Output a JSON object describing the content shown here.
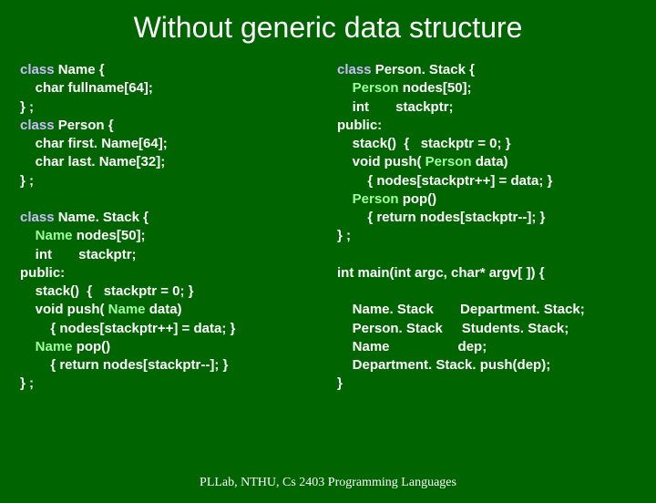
{
  "colors": {
    "background": "#006400",
    "title_color": "#ffffff",
    "text_color": "#ffffff",
    "keyword_color": "#ccbbff",
    "type_color": "#9fff9f",
    "footer_color": "#ffffff"
  },
  "title": "Without generic data structure",
  "title_font": "Comic Sans MS",
  "title_fontsize": 32,
  "code_fontsize": 15,
  "left": {
    "l1a": "class",
    "l1b": " Name {",
    "l2": "    char fullname[64];",
    "l3": "} ;",
    "l4a": "class",
    "l4b": " Person {",
    "l5": "    char first. Name[64];",
    "l6": "    char last. Name[32];",
    "l7": "} ;",
    "l8": "",
    "l9a": "class",
    "l9b": " Name. Stack {",
    "l10a": "    ",
    "l10b": "Name",
    "l10c": " nodes[50];",
    "l11": "    int       stackptr;",
    "l12": "public:",
    "l13": "    stack()  {   stackptr = 0; }",
    "l14a": "    void push(",
    "l14b": " Name",
    "l14c": " data)",
    "l15": "        { nodes[stackptr++] = data; }",
    "l16a": "    ",
    "l16b": "Name",
    "l16c": " pop()",
    "l17": "        { return nodes[stackptr--]; }",
    "l18": "} ;"
  },
  "right": {
    "r1a": "class",
    "r1b": " Person. Stack {",
    "r2a": "    ",
    "r2b": "Person",
    "r2c": " nodes[50];",
    "r3": "    int       stackptr;",
    "r4": "public:",
    "r5": "    stack()  {   stackptr = 0; }",
    "r6a": "    void push(",
    "r6b": " Person",
    "r6c": " data)",
    "r7": "        { nodes[stackptr++] = data; }",
    "r8a": "    ",
    "r8b": "Person",
    "r8c": " pop()",
    "r9": "        { return nodes[stackptr--]; }",
    "r10": "} ;",
    "r11": "",
    "r12": "int main(int argc, char* argv[ ]) {",
    "r13": "",
    "r14": "    Name. Stack       Department. Stack;",
    "r15": "    Person. Stack     Students. Stack;",
    "r16": "    Name                  dep;",
    "r17": "    Department. Stack. push(dep);",
    "r18": "}"
  },
  "footer": "PLLab, NTHU, Cs 2403 Programming Languages"
}
